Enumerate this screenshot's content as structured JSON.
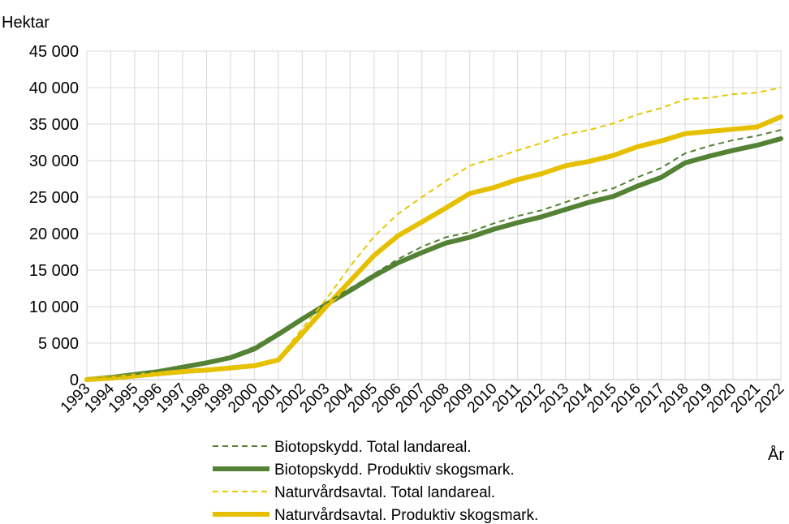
{
  "chart_data": {
    "type": "line",
    "title": "",
    "ylabel": "Hektar",
    "xlabel": "År",
    "ylim": [
      0,
      45000
    ],
    "y_ticks": [
      0,
      5000,
      10000,
      15000,
      20000,
      25000,
      30000,
      35000,
      40000,
      45000
    ],
    "y_tick_labels": [
      "0",
      "5 000",
      "10 000",
      "15 000",
      "20 000",
      "25 000",
      "30 000",
      "35 000",
      "40 000",
      "45 000"
    ],
    "grid": "vertical and horizontal",
    "legend_position": "bottom",
    "x": [
      "1993",
      "1994",
      "1995",
      "1996",
      "1997",
      "1998",
      "1999",
      "2000",
      "2001",
      "2002",
      "2003",
      "2004",
      "2005",
      "2006",
      "2007",
      "2008",
      "2009",
      "2010",
      "2011",
      "2012",
      "2013",
      "2014",
      "2015",
      "2016",
      "2017",
      "2018",
      "2019",
      "2020",
      "2021",
      "2022"
    ],
    "series": [
      {
        "name": "Biotopskydd. Total landareal.",
        "color": "#548235",
        "style": "dashed-thin",
        "values": [
          0,
          300,
          700,
          1200,
          1800,
          2500,
          3200,
          4500,
          6500,
          8500,
          10500,
          12500,
          14500,
          16500,
          18200,
          19500,
          20200,
          21400,
          22400,
          23200,
          24300,
          25400,
          26200,
          27700,
          29000,
          31000,
          32000,
          32800,
          33400,
          34200
        ]
      },
      {
        "name": "Biotopskydd. Produktiv skogsmark.",
        "color": "#548235",
        "style": "solid-thick",
        "values": [
          0,
          300,
          700,
          1100,
          1700,
          2300,
          3000,
          4200,
          6200,
          8300,
          10300,
          12200,
          14200,
          16000,
          17400,
          18700,
          19500,
          20600,
          21500,
          22300,
          23300,
          24300,
          25100,
          26500,
          27700,
          29700,
          30600,
          31400,
          32100,
          33000
        ]
      },
      {
        "name": "Naturvårdsavtal. Total landareal.",
        "color": "#e6c800",
        "style": "dashed-thin",
        "values": [
          0,
          200,
          500,
          800,
          1100,
          1400,
          1600,
          1900,
          2900,
          7000,
          11000,
          15500,
          19600,
          22700,
          25000,
          27200,
          29300,
          30300,
          31400,
          32400,
          33600,
          34200,
          35100,
          36300,
          37200,
          38400,
          38600,
          39100,
          39300,
          40000
        ]
      },
      {
        "name": "Naturvårdsavtal. Produktiv skogsmark.",
        "color": "#e6c000",
        "style": "solid-thick",
        "values": [
          0,
          200,
          500,
          800,
          1100,
          1300,
          1600,
          1900,
          2700,
          6300,
          10000,
          13500,
          17000,
          19700,
          21600,
          23500,
          25500,
          26300,
          27400,
          28200,
          29300,
          29900,
          30700,
          31900,
          32700,
          33700,
          34000,
          34300,
          34600,
          36000
        ]
      }
    ]
  }
}
